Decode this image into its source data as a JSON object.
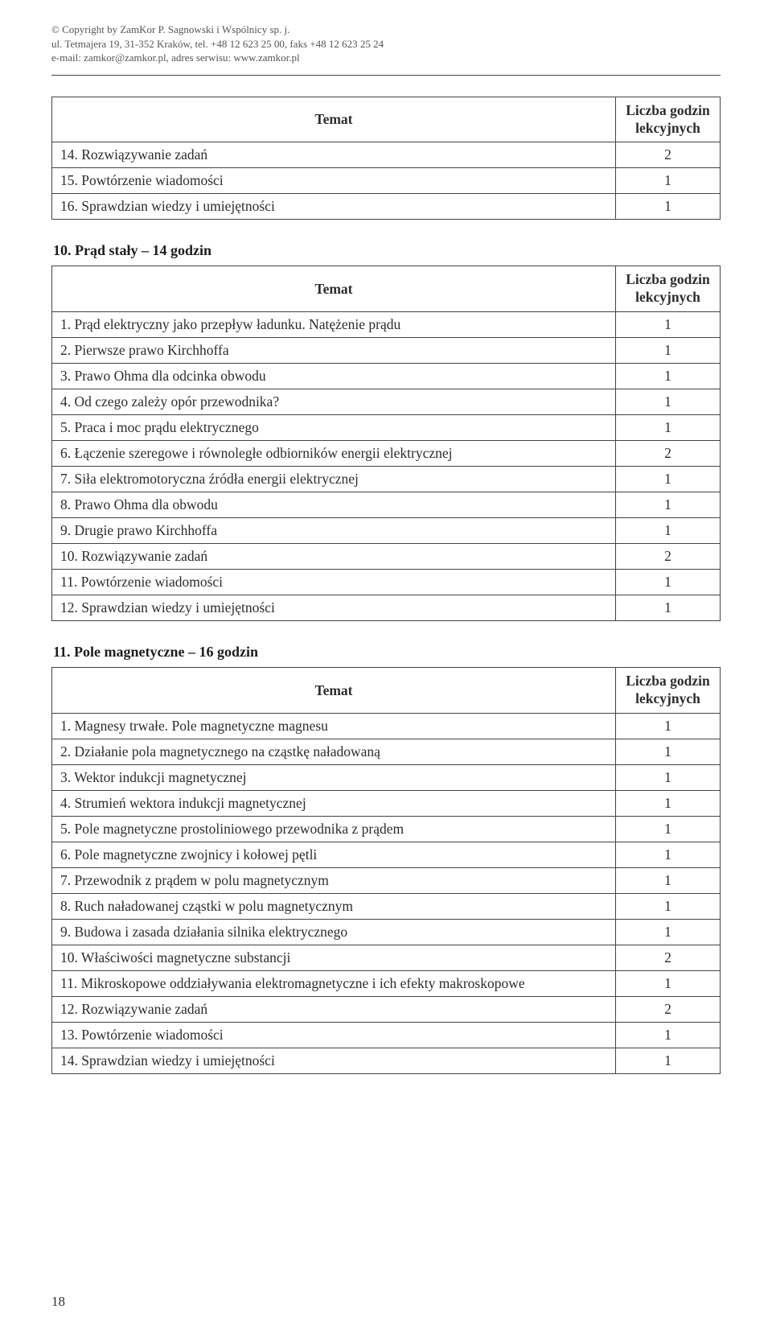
{
  "copyright": {
    "line1": "© Copyright by ZamKor P. Sagnowski i Wspólnicy sp. j.",
    "line2": "ul. Tetmajera 19, 31-352 Kraków, tel. +48 12 623 25 00, faks +48 12 623 25 24",
    "line3": "e-mail: zamkor@zamkor.pl, adres serwisu: www.zamkor.pl"
  },
  "headers": {
    "topic": "Temat",
    "hours": "Liczba godzin lekcyjnych"
  },
  "tables": [
    {
      "title": null,
      "rows": [
        {
          "topic": "14. Rozwiązywanie zadań",
          "hours": "2"
        },
        {
          "topic": "15. Powtórzenie wiadomości",
          "hours": "1"
        },
        {
          "topic": "16. Sprawdzian wiedzy i umiejętności",
          "hours": "1"
        }
      ]
    },
    {
      "title": "10. Prąd stały – 14 godzin",
      "rows": [
        {
          "topic": "1. Prąd elektryczny jako przepływ ładunku. Natężenie prądu",
          "hours": "1"
        },
        {
          "topic": "2. Pierwsze prawo Kirchhoffa",
          "hours": "1"
        },
        {
          "topic": "3. Prawo Ohma dla odcinka obwodu",
          "hours": "1"
        },
        {
          "topic": "4. Od czego zależy opór przewodnika?",
          "hours": "1"
        },
        {
          "topic": "5. Praca i moc prądu elektrycznego",
          "hours": "1"
        },
        {
          "topic": "6. Łączenie szeregowe i równoległe odbiorników energii elektrycznej",
          "hours": "2"
        },
        {
          "topic": "7. Siła elektromotoryczna źródła energii elektrycznej",
          "hours": "1"
        },
        {
          "topic": "8. Prawo Ohma dla obwodu",
          "hours": "1"
        },
        {
          "topic": "9. Drugie prawo Kirchhoffa",
          "hours": "1"
        },
        {
          "topic": "10. Rozwiązywanie zadań",
          "hours": "2"
        },
        {
          "topic": "11. Powtórzenie wiadomości",
          "hours": "1"
        },
        {
          "topic": "12. Sprawdzian wiedzy i umiejętności",
          "hours": "1"
        }
      ]
    },
    {
      "title": "11. Pole magnetyczne – 16 godzin",
      "rows": [
        {
          "topic": "1. Magnesy trwałe. Pole magnetyczne magnesu",
          "hours": "1"
        },
        {
          "topic": "2. Działanie pola magnetycznego na cząstkę naładowaną",
          "hours": "1"
        },
        {
          "topic": "3. Wektor indukcji magnetycznej",
          "hours": "1"
        },
        {
          "topic": "4. Strumień wektora indukcji magnetycznej",
          "hours": "1"
        },
        {
          "topic": "5. Pole magnetyczne prostoliniowego przewodnika z prądem",
          "hours": "1"
        },
        {
          "topic": "6. Pole magnetyczne zwojnicy i kołowej pętli",
          "hours": "1"
        },
        {
          "topic": "7. Przewodnik z prądem w polu magnetycznym",
          "hours": "1"
        },
        {
          "topic": "8. Ruch naładowanej cząstki w polu magnetycznym",
          "hours": "1"
        },
        {
          "topic": "9. Budowa i zasada działania silnika elektrycznego",
          "hours": "1"
        },
        {
          "topic": "10. Właściwości magnetyczne substancji",
          "hours": "2"
        },
        {
          "topic": "11. Mikroskopowe oddziaływania elektromagnetyczne i ich efekty makroskopowe",
          "hours": "1"
        },
        {
          "topic": "12. Rozwiązywanie zadań",
          "hours": "2"
        },
        {
          "topic": "13. Powtórzenie wiadomości",
          "hours": "1"
        },
        {
          "topic": "14. Sprawdzian wiedzy i umiejętności",
          "hours": "1"
        }
      ]
    }
  ],
  "page_number": "18"
}
